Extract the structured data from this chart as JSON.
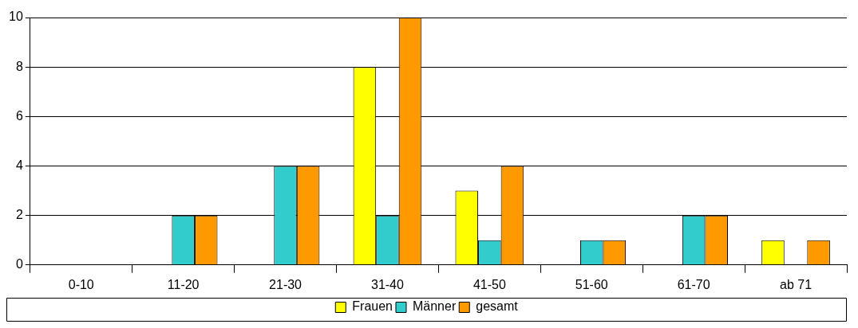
{
  "chart_data": {
    "type": "bar",
    "categories": [
      "0-10",
      "11-20",
      "21-30",
      "31-40",
      "41-50",
      "51-60",
      "61-70",
      "ab 71"
    ],
    "series": [
      {
        "name": "Frauen",
        "color": "#ffff00",
        "values": [
          0,
          0,
          0,
          8,
          3,
          0,
          0,
          1
        ]
      },
      {
        "name": "Männer",
        "color": "#33cccc",
        "values": [
          0,
          2,
          4,
          2,
          1,
          1,
          2,
          0
        ]
      },
      {
        "name": "gesamt",
        "color": "#ff9900",
        "values": [
          0,
          2,
          4,
          10,
          4,
          1,
          2,
          1
        ]
      }
    ],
    "ylim": [
      0,
      10
    ],
    "yticks": [
      0,
      2,
      4,
      6,
      8,
      10
    ],
    "grid": "y",
    "legend": "bottom"
  }
}
